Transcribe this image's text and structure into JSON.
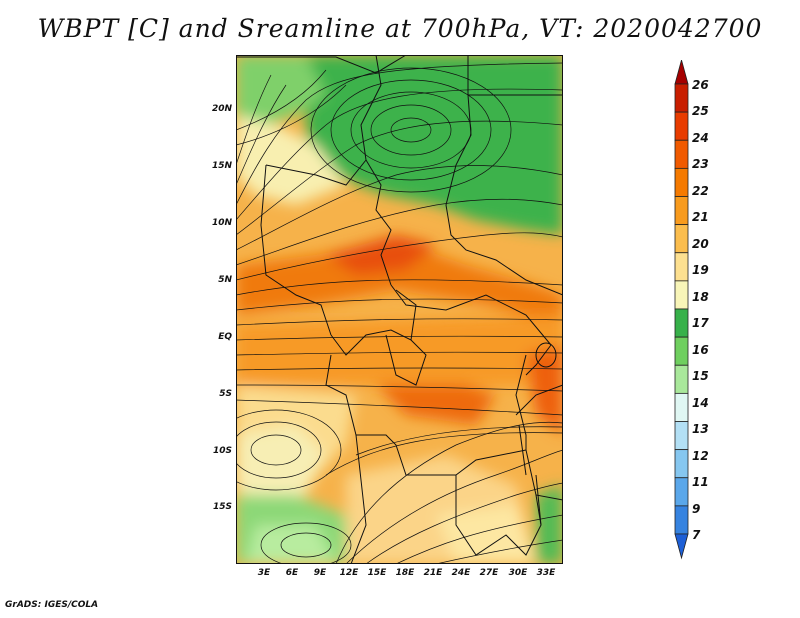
{
  "title": "WBPT [C] and Sreamline at 700hPa, VT: 2020042700",
  "footer": "GrADS: IGES/COLA",
  "map": {
    "lat_ticks": [
      "20N",
      "15N",
      "10N",
      "5N",
      "EQ",
      "5S",
      "10S",
      "15S"
    ],
    "lon_ticks": [
      "3E",
      "6E",
      "9E",
      "12E",
      "15E",
      "18E",
      "21E",
      "24E",
      "27E",
      "30E",
      "33E"
    ]
  },
  "colorbar": {
    "labels": [
      "26",
      "25",
      "24",
      "23",
      "22",
      "21",
      "20",
      "19",
      "18",
      "17",
      "16",
      "15",
      "14",
      "13",
      "12",
      "11",
      "9",
      "7"
    ],
    "colors": [
      "#a50000",
      "#c81e00",
      "#e83c00",
      "#f05a00",
      "#f57a00",
      "#f89b1e",
      "#fbbd4d",
      "#fde090",
      "#f8f5b8",
      "#37b14a",
      "#6fcf5f",
      "#a9e89b",
      "#e0f7f3",
      "#b3e0f5",
      "#86c7f0",
      "#5aa7ea",
      "#3683e0",
      "#1d5fd6"
    ]
  }
}
